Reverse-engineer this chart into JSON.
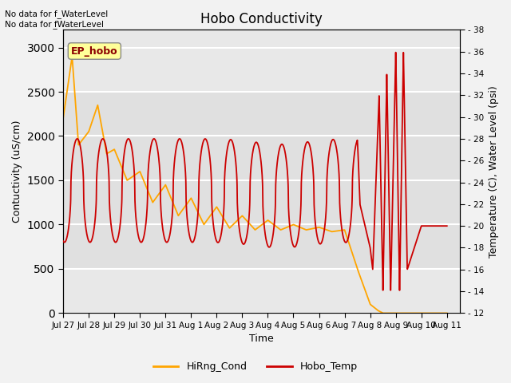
{
  "title": "Hobo Conductivity",
  "xlabel": "Time",
  "ylabel_left": "Contuctivity (uS/cm)",
  "ylabel_right": "Temperature (C), Water Level (psi)",
  "annotation1": "No data for f_WaterLevel",
  "annotation2": "No data for f̲WaterLevel",
  "ep_hobo_label": "EP_hobo",
  "legend_labels": [
    "HiRng_Cond",
    "Hobo_Temp"
  ],
  "legend_colors": [
    "#FFA500",
    "#CC0000"
  ],
  "xlim": [
    0,
    15.5
  ],
  "ylim_left": [
    0,
    3200
  ],
  "ylim_right": [
    12,
    38
  ],
  "yticks_left": [
    0,
    500,
    1000,
    1500,
    2000,
    2500,
    3000
  ],
  "yticks_right": [
    12,
    14,
    16,
    18,
    20,
    22,
    24,
    26,
    28,
    30,
    32,
    34,
    36,
    38
  ],
  "xtick_labels": [
    "Jul 27",
    "Jul 28",
    "Jul 29",
    "Jul 30",
    "Jul 31",
    "Aug 1",
    "Aug 2",
    "Aug 3",
    "Aug 4",
    "Aug 5",
    "Aug 6",
    "Aug 7",
    "Aug 8",
    "Aug 9",
    "Aug 10",
    "Aug 11"
  ],
  "fig_bg_color": "#F2F2F2",
  "plot_bg_color": "#E8E8E8",
  "plot_inner_bg": "#D8D8D8",
  "grid_color": "#FFFFFF",
  "cond_color": "#FFA500",
  "temp_color": "#CC0000",
  "cond_linewidth": 1.3,
  "temp_linewidth": 1.3,
  "title_fontsize": 12,
  "label_fontsize": 9,
  "tick_fontsize": 8
}
